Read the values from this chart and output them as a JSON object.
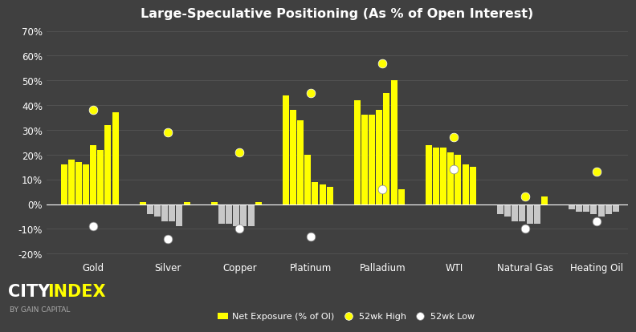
{
  "title": "Large-Speculative Positioning (As % of Open Interest)",
  "background_color": "#404040",
  "plot_bg_color": "#404040",
  "text_color": "#ffffff",
  "grid_color": "#555555",
  "bar_color_positive": "#ffff00",
  "bar_color_negative": "#c8c8c8",
  "marker_high_color": "#ffff00",
  "marker_low_color": "#cccccc",
  "ylim": [
    -0.22,
    0.72
  ],
  "yticks": [
    -0.2,
    -0.1,
    0.0,
    0.1,
    0.2,
    0.3,
    0.4,
    0.5,
    0.6,
    0.7
  ],
  "groups": [
    {
      "label": "Gold",
      "bars": [
        0.16,
        0.18,
        0.17,
        0.16,
        0.24,
        0.22,
        0.32,
        0.37
      ],
      "high52": 0.38,
      "low52": -0.09
    },
    {
      "label": "Silver",
      "bars": [
        0.01,
        -0.04,
        -0.05,
        -0.07,
        -0.07,
        -0.09,
        0.01
      ],
      "high52": 0.29,
      "low52": -0.14
    },
    {
      "label": "Copper",
      "bars": [
        0.01,
        -0.08,
        -0.08,
        -0.09,
        -0.09,
        -0.09,
        0.01
      ],
      "high52": 0.21,
      "low52": -0.1
    },
    {
      "label": "Platinum",
      "bars": [
        0.44,
        0.38,
        0.34,
        0.2,
        0.09,
        0.08,
        0.07
      ],
      "high52": 0.45,
      "low52": -0.13
    },
    {
      "label": "Palladium",
      "bars": [
        0.42,
        0.36,
        0.36,
        0.38,
        0.45,
        0.5,
        0.06
      ],
      "high52": 0.57,
      "low52": 0.06
    },
    {
      "label": "WTI",
      "bars": [
        0.24,
        0.23,
        0.23,
        0.21,
        0.2,
        0.16,
        0.15
      ],
      "high52": 0.27,
      "low52": 0.14
    },
    {
      "label": "Natural Gas",
      "bars": [
        -0.04,
        -0.05,
        -0.07,
        -0.07,
        -0.08,
        -0.08,
        0.03
      ],
      "high52": 0.03,
      "low52": -0.1
    },
    {
      "label": "Heating Oil",
      "bars": [
        -0.02,
        -0.03,
        -0.03,
        -0.04,
        -0.05,
        -0.04,
        -0.03
      ],
      "high52": 0.13,
      "low52": -0.07
    }
  ],
  "legend_labels": [
    "Net Exposure (% of OI)",
    "52wk High",
    "52wk Low"
  ],
  "city_color": "#ffffff",
  "index_color": "#ffff00",
  "bygain_color": "#aaaaaa"
}
